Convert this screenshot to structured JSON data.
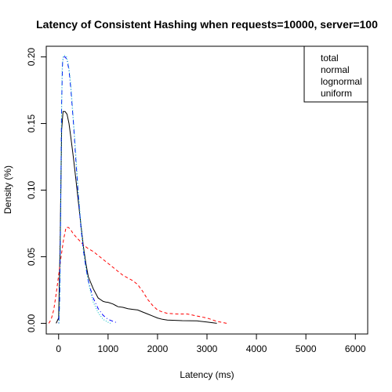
{
  "chart_data": {
    "type": "line",
    "title": "Latency of Consistent Hashing when requests=10000, server=100",
    "xlabel": "Latency (ms)",
    "ylabel": "Density (%)",
    "xlim": [
      -250,
      6250
    ],
    "ylim": [
      -0.008,
      0.208
    ],
    "x_ticks": [
      0,
      1000,
      2000,
      3000,
      4000,
      5000,
      6000
    ],
    "y_ticks": [
      0.0,
      0.05,
      0.1,
      0.15,
      0.2
    ],
    "y_tick_labels": [
      "0.00",
      "0.05",
      "0.10",
      "0.15",
      "0.20"
    ],
    "grid": false,
    "legend": {
      "placement": "top-right",
      "entries": [
        "total",
        "normal",
        "lognormal",
        "uniform"
      ]
    },
    "series": [
      {
        "name": "total",
        "color": "#000000",
        "dash": "solid",
        "x": [
          -50,
          0,
          30,
          60,
          90,
          130,
          170,
          210,
          250,
          300,
          350,
          400,
          450,
          500,
          550,
          600,
          700,
          800,
          900,
          950,
          1000,
          1100,
          1150,
          1200,
          1300,
          1400,
          1500,
          1600,
          1700,
          1800,
          1900,
          2000,
          2100,
          2200,
          2500,
          2800,
          3000,
          3200
        ],
        "y": [
          0.0,
          0.004,
          0.06,
          0.145,
          0.159,
          0.159,
          0.157,
          0.15,
          0.139,
          0.124,
          0.108,
          0.091,
          0.074,
          0.058,
          0.045,
          0.035,
          0.026,
          0.019,
          0.0165,
          0.016,
          0.0158,
          0.0145,
          0.0135,
          0.0125,
          0.012,
          0.011,
          0.0105,
          0.01,
          0.0085,
          0.007,
          0.0055,
          0.004,
          0.003,
          0.0025,
          0.002,
          0.0018,
          0.001,
          0.0
        ]
      },
      {
        "name": "normal",
        "color": "#ff0000",
        "dash": "dashed",
        "x": [
          -200,
          -150,
          -100,
          -50,
          0,
          50,
          100,
          150,
          200,
          250,
          300,
          400,
          500,
          600,
          700,
          800,
          900,
          1000,
          1100,
          1200,
          1300,
          1400,
          1500,
          1600,
          1700,
          1800,
          1900,
          2000,
          2100,
          2200,
          2400,
          2600,
          2800,
          3000,
          3200,
          3400
        ],
        "y": [
          0.0,
          0.003,
          0.01,
          0.022,
          0.036,
          0.05,
          0.063,
          0.072,
          0.072,
          0.07,
          0.067,
          0.063,
          0.059,
          0.056,
          0.054,
          0.051,
          0.048,
          0.045,
          0.042,
          0.039,
          0.036,
          0.034,
          0.032,
          0.029,
          0.024,
          0.018,
          0.0135,
          0.01,
          0.0085,
          0.0075,
          0.007,
          0.007,
          0.0055,
          0.004,
          0.0015,
          0.0
        ]
      },
      {
        "name": "lognormal",
        "color": "#0000ff",
        "dash": "dotdash",
        "x": [
          0,
          20,
          40,
          60,
          80,
          100,
          130,
          170,
          210,
          250,
          300,
          350,
          400,
          450,
          500,
          550,
          600,
          650,
          700,
          800,
          900,
          1000,
          1100,
          1150,
          1200
        ],
        "y": [
          0.0,
          0.015,
          0.08,
          0.165,
          0.196,
          0.2,
          0.2,
          0.198,
          0.19,
          0.175,
          0.15,
          0.122,
          0.095,
          0.072,
          0.055,
          0.042,
          0.032,
          0.025,
          0.019,
          0.011,
          0.006,
          0.003,
          0.0015,
          0.0008,
          0.0
        ]
      },
      {
        "name": "uniform",
        "color": "#00bfbf",
        "dash": "dotted",
        "x": [
          10,
          30,
          50,
          70,
          90,
          120,
          160,
          200,
          240,
          280,
          320,
          360,
          400,
          450,
          500,
          550,
          600,
          650,
          700,
          800,
          900,
          1000,
          1050
        ],
        "y": [
          0.0,
          0.03,
          0.12,
          0.19,
          0.2,
          0.201,
          0.2,
          0.194,
          0.182,
          0.163,
          0.142,
          0.12,
          0.098,
          0.074,
          0.056,
          0.042,
          0.031,
          0.023,
          0.016,
          0.008,
          0.003,
          0.0008,
          0.0
        ]
      }
    ]
  }
}
